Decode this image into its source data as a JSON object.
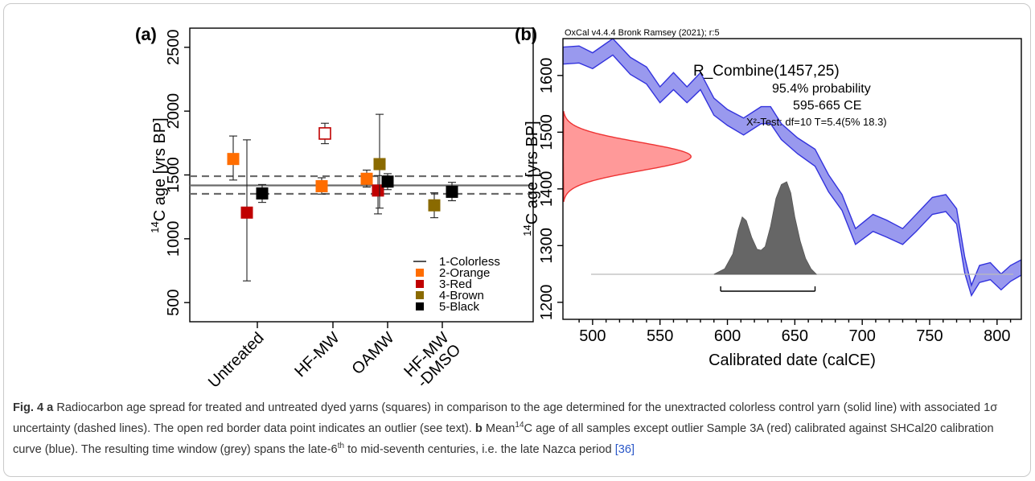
{
  "caption": {
    "fig_label": "Fig. 4",
    "a_label": "a",
    "part_a": "Radiocarbon age spread for treated and untreated dyed yarns (squares) in comparison to the age determined for the unextracted colorless control yarn (solid line) with associated 1σ uncertainty (dashed lines). The open red border data point indicates an outlier (see text).",
    "b_label": "b",
    "part_b_1": "Mean",
    "part_b_sup": "14",
    "part_b_2": "C age of all samples except outlier Sample 3A (red) calibrated against SHCal20 calibration curve (blue). The resulting time window (grey) spans the late-6",
    "part_b_sup2": "th",
    "part_b_3": "to mid-seventh centuries, i.e. the late Nazca period",
    "ref": "[36]"
  },
  "chart_data": [
    {
      "panel": "(a)",
      "type": "scatter",
      "ylabel_sup": "14",
      "ylabel": "C age [yrs BP]",
      "ylim": [
        350,
        2650
      ],
      "yticks": [
        500,
        1000,
        1500,
        2000,
        2500
      ],
      "categories": [
        "Untreated",
        "HF-MW",
        "OAMW",
        "HF-MW -DMSO"
      ],
      "category_lines": [
        [
          "Untreated"
        ],
        [
          "HF-MW"
        ],
        [
          "OAMW"
        ],
        [
          "HF-MW",
          "-DMSO"
        ]
      ],
      "control_line": {
        "value": 1418,
        "uncertainty_low": 1352,
        "uncertainty_high": 1490
      },
      "series": [
        {
          "name": "2-Orange",
          "color": "#ff6d00",
          "points": [
            {
              "category": "Untreated",
              "y": 1625,
              "err_low": 1460,
              "err_high": 1805
            },
            {
              "category": "HF-MW",
              "y": 1412,
              "err_low": 1350,
              "err_high": 1478
            },
            {
              "category": "OAMW",
              "y": 1470,
              "err_low": 1405,
              "err_high": 1538
            }
          ]
        },
        {
          "name": "3-Red",
          "color": "#c00000",
          "points": [
            {
              "category": "Untreated",
              "y": 1205,
              "err_low": 670,
              "err_high": 1775
            },
            {
              "category": "HF-MW",
              "y": 1825,
              "err_low": 1745,
              "err_high": 1905,
              "outlier": true
            },
            {
              "category": "OAMW",
              "y": 1378,
              "err_low": 1195,
              "err_high": 1495
            }
          ]
        },
        {
          "name": "4-Brown",
          "color": "#8a6a00",
          "points": [
            {
              "category": "OAMW",
              "y": 1585,
              "err_low": 1240,
              "err_high": 1975
            },
            {
              "category": "HF-MW -DMSO",
              "y": 1262,
              "err_low": 1165,
              "err_high": 1360
            }
          ]
        },
        {
          "name": "5-Black",
          "color": "#000000",
          "points": [
            {
              "category": "Untreated",
              "y": 1355,
              "err_low": 1285,
              "err_high": 1425
            },
            {
              "category": "OAMW",
              "y": 1448,
              "err_low": 1385,
              "err_high": 1510
            },
            {
              "category": "HF-MW -DMSO",
              "y": 1368,
              "err_low": 1298,
              "err_high": 1442
            }
          ]
        }
      ],
      "legend": [
        {
          "label": "1-Colorless",
          "symbol": "line",
          "color": "#555555"
        },
        {
          "label": "2-Orange",
          "symbol": "square",
          "color": "#ff6d00"
        },
        {
          "label": "3-Red",
          "symbol": "square",
          "color": "#c00000"
        },
        {
          "label": "4-Brown",
          "symbol": "square",
          "color": "#8a6a00"
        },
        {
          "label": "5-Black",
          "symbol": "square",
          "color": "#000000"
        }
      ]
    },
    {
      "panel": "(b)",
      "type": "area",
      "header": "OxCal v4.4.4 Bronk Ramsey (2021); r:5",
      "xlabel": "Calibrated date (calCE)",
      "ylabel_sup": "14",
      "ylabel": "C age [yrs BP]",
      "xlim": [
        478,
        818
      ],
      "ylim": [
        1170,
        1665
      ],
      "xticks": [
        500,
        550,
        600,
        650,
        700,
        750,
        800
      ],
      "yticks": [
        1200,
        1300,
        1400,
        1500,
        1600
      ],
      "annotations": {
        "title": "R_Combine(1457,25)",
        "probability": "95.4% probability",
        "range": "595-665 CE",
        "chi2": "X²-Test: df=10 T=5.4(5% 18.3)"
      },
      "radiocarbon_curve": {
        "name": "SHCal20",
        "color": "#3333dd",
        "fill": "#9999ee",
        "x": [
          478,
          490,
          500,
          515,
          528,
          540,
          550,
          560,
          570,
          580,
          590,
          600,
          612,
          625,
          632,
          640,
          652,
          665,
          675,
          685,
          695,
          708,
          718,
          730,
          740,
          752,
          762,
          770,
          776,
          781,
          787,
          795,
          803,
          810,
          818
        ],
        "upper": [
          1650,
          1652,
          1640,
          1665,
          1632,
          1615,
          1580,
          1605,
          1580,
          1605,
          1560,
          1540,
          1525,
          1545,
          1545,
          1515,
          1490,
          1470,
          1425,
          1390,
          1330,
          1355,
          1345,
          1330,
          1355,
          1385,
          1390,
          1365,
          1280,
          1230,
          1265,
          1270,
          1250,
          1265,
          1275
        ],
        "lower": [
          1620,
          1622,
          1612,
          1636,
          1602,
          1585,
          1552,
          1575,
          1552,
          1575,
          1530,
          1512,
          1495,
          1515,
          1515,
          1487,
          1462,
          1440,
          1395,
          1362,
          1302,
          1325,
          1315,
          1302,
          1325,
          1355,
          1360,
          1338,
          1252,
          1212,
          1235,
          1240,
          1222,
          1237,
          1248
        ]
      },
      "measurement": {
        "mean": 1457,
        "sigma": 25,
        "color": "#ee3333",
        "fill": "#ff9999"
      },
      "calibrated_distribution": {
        "color": "#666666",
        "x": [
          590,
          598,
          604,
          608,
          611,
          614,
          618,
          622,
          625,
          628,
          632,
          636,
          640,
          644,
          647,
          650,
          654,
          658,
          662,
          666
        ],
        "density": [
          0.0,
          0.06,
          0.22,
          0.48,
          0.62,
          0.58,
          0.4,
          0.27,
          0.26,
          0.3,
          0.52,
          0.82,
          0.97,
          1.0,
          0.88,
          0.62,
          0.36,
          0.17,
          0.06,
          0.0
        ]
      },
      "range_bar": {
        "from": 595,
        "to": 665
      }
    }
  ]
}
